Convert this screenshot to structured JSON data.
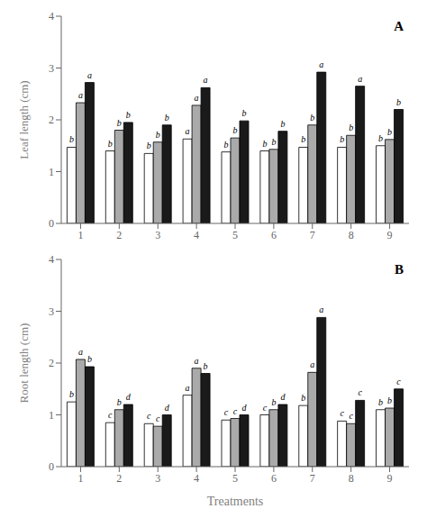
{
  "chart_data": [
    {
      "type": "bar",
      "title": "A",
      "ylabel": "Leaf length (cm)",
      "ylim": [
        0,
        4
      ],
      "yticks": [
        0,
        1,
        2,
        3,
        4
      ],
      "grid": false,
      "categories": [
        "1",
        "2",
        "3",
        "4",
        "5",
        "6",
        "7",
        "8",
        "9"
      ],
      "series": [
        {
          "color": "white",
          "values": [
            1.47,
            1.4,
            1.35,
            1.63,
            1.38,
            1.4,
            1.47,
            1.47,
            1.5
          ],
          "annotations": [
            "b",
            "b",
            "b",
            "a",
            "b",
            "b",
            "b",
            "b",
            "b"
          ]
        },
        {
          "color": "#aaaaaa",
          "values": [
            2.33,
            1.8,
            1.57,
            2.28,
            1.65,
            1.43,
            1.9,
            1.7,
            1.62
          ],
          "annotations": [
            "a",
            "b",
            "b",
            "a",
            "b",
            "b",
            "b",
            "b",
            "b"
          ]
        },
        {
          "color": "#1a1a1a",
          "values": [
            2.72,
            1.95,
            1.9,
            2.62,
            1.98,
            1.78,
            2.92,
            2.65,
            2.2
          ],
          "annotations": [
            "a",
            "b",
            "b",
            "a",
            "b",
            "b",
            "a",
            "a",
            "b"
          ]
        }
      ]
    },
    {
      "type": "bar",
      "title": "B",
      "ylabel": "Root length (cm)",
      "xlabel": "Treatments",
      "ylim": [
        0,
        4
      ],
      "yticks": [
        0,
        1,
        2,
        3,
        4
      ],
      "grid": false,
      "categories": [
        "1",
        "2",
        "3",
        "4",
        "5",
        "6",
        "7",
        "8",
        "9"
      ],
      "series": [
        {
          "color": "white",
          "values": [
            1.25,
            0.85,
            0.83,
            1.38,
            0.9,
            1.0,
            1.18,
            0.88,
            1.1
          ],
          "annotations": [
            "b",
            "c",
            "c",
            "a",
            "c",
            "c",
            "b",
            "c",
            "b"
          ]
        },
        {
          "color": "#aaaaaa",
          "values": [
            2.07,
            1.1,
            0.78,
            1.9,
            0.93,
            1.1,
            1.82,
            0.83,
            1.13
          ],
          "annotations": [
            "a",
            "b",
            "c",
            "a",
            "c",
            "b",
            "a",
            "c",
            "b"
          ]
        },
        {
          "color": "#1a1a1a",
          "values": [
            1.93,
            1.2,
            1.0,
            1.8,
            1.0,
            1.2,
            2.88,
            1.28,
            1.5
          ],
          "annotations": [
            "b",
            "d",
            "d",
            "b",
            "d",
            "d",
            "a",
            "c",
            "c"
          ]
        }
      ]
    }
  ]
}
